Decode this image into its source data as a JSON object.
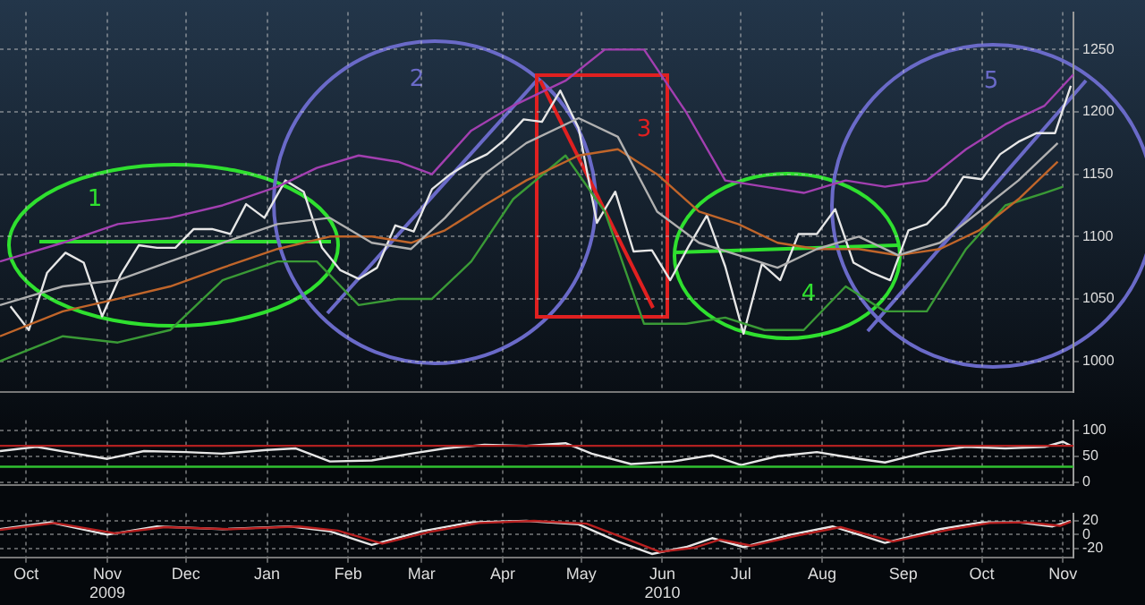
{
  "chart_data": [
    {
      "type": "line",
      "xlim": [
        "2009-09-21",
        "2010-11-05"
      ],
      "ylim": [
        975,
        1280
      ],
      "yticks": [
        1000,
        1050,
        1100,
        1150,
        1200,
        1250
      ],
      "xticks": [
        {
          "value": "2009-10-01",
          "label": null
        },
        {
          "value": "2009-11-01",
          "label": null
        },
        {
          "value": "2009-12-01",
          "label": null
        },
        {
          "value": "2010-01-01",
          "label": null
        },
        {
          "value": "2010-02-01",
          "label": null
        },
        {
          "value": "2010-03-01",
          "label": null
        },
        {
          "value": "2010-04-01",
          "label": null
        },
        {
          "value": "2010-05-01",
          "label": null
        },
        {
          "value": "2010-06-01",
          "label": null
        },
        {
          "value": "2010-07-01",
          "label": null
        },
        {
          "value": "2010-08-01",
          "label": null
        },
        {
          "value": "2010-09-01",
          "label": null
        },
        {
          "value": "2010-10-01",
          "label": null
        },
        {
          "value": "2010-11-01",
          "label": null
        }
      ],
      "grid": true,
      "tick_labels": "y",
      "annotations": [
        "1",
        "2",
        "3",
        "4",
        "5"
      ],
      "series": [
        {
          "color": "#a23fb0",
          "x": [
            "2009-09-21",
            "2009-10-15",
            "2009-11-05",
            "2009-11-25",
            "2009-12-15",
            "2010-01-05",
            "2010-01-20",
            "2010-02-05",
            "2010-02-20",
            "2010-03-05",
            "2010-03-20",
            "2010-04-05",
            "2010-04-25",
            "2010-05-10",
            "2010-05-25",
            "2010-06-10",
            "2010-06-25",
            "2010-07-10",
            "2010-07-25",
            "2010-08-10",
            "2010-08-25",
            "2010-09-10",
            "2010-09-25",
            "2010-10-10",
            "2010-10-25",
            "2010-11-05"
          ],
          "values": [
            1080,
            1095,
            1110,
            1115,
            1125,
            1140,
            1155,
            1165,
            1160,
            1150,
            1185,
            1205,
            1225,
            1250,
            1250,
            1200,
            1145,
            1140,
            1135,
            1145,
            1140,
            1145,
            1170,
            1190,
            1205,
            1230
          ]
        },
        {
          "color": "#b0b0b0",
          "x": [
            "2009-09-21",
            "2009-10-15",
            "2009-11-05",
            "2009-11-25",
            "2009-12-15",
            "2010-01-05",
            "2010-01-25",
            "2010-02-10",
            "2010-02-25",
            "2010-03-10",
            "2010-03-25",
            "2010-04-10",
            "2010-04-30",
            "2010-05-15",
            "2010-05-30",
            "2010-06-15",
            "2010-06-30",
            "2010-07-15",
            "2010-07-30",
            "2010-08-15",
            "2010-08-30",
            "2010-09-15",
            "2010-09-30",
            "2010-10-15",
            "2010-10-30"
          ],
          "values": [
            1045,
            1060,
            1065,
            1080,
            1095,
            1110,
            1115,
            1095,
            1090,
            1115,
            1150,
            1175,
            1195,
            1180,
            1120,
            1095,
            1085,
            1075,
            1090,
            1100,
            1085,
            1095,
            1120,
            1145,
            1175
          ]
        },
        {
          "color": "#c0652a",
          "x": [
            "2009-09-21",
            "2009-10-15",
            "2009-11-05",
            "2009-11-25",
            "2009-12-15",
            "2010-01-05",
            "2010-01-25",
            "2010-02-10",
            "2010-02-25",
            "2010-03-10",
            "2010-03-25",
            "2010-04-10",
            "2010-04-30",
            "2010-05-15",
            "2010-05-30",
            "2010-06-15",
            "2010-06-30",
            "2010-07-15",
            "2010-07-30",
            "2010-08-15",
            "2010-08-30",
            "2010-09-15",
            "2010-09-30",
            "2010-10-15",
            "2010-10-30"
          ],
          "values": [
            1020,
            1040,
            1050,
            1060,
            1075,
            1090,
            1100,
            1100,
            1095,
            1105,
            1125,
            1145,
            1165,
            1170,
            1150,
            1120,
            1110,
            1095,
            1090,
            1090,
            1085,
            1090,
            1105,
            1130,
            1160
          ]
        },
        {
          "color": "#3a9a36",
          "x": [
            "2009-09-21",
            "2009-10-15",
            "2009-11-05",
            "2009-11-25",
            "2009-12-15",
            "2010-01-05",
            "2010-01-20",
            "2010-02-05",
            "2010-02-20",
            "2010-03-05",
            "2010-03-20",
            "2010-04-05",
            "2010-04-25",
            "2010-05-10",
            "2010-05-25",
            "2010-06-10",
            "2010-06-25",
            "2010-07-10",
            "2010-07-25",
            "2010-08-10",
            "2010-08-25",
            "2010-09-10",
            "2010-09-25",
            "2010-10-10",
            "2010-10-25",
            "2010-11-01"
          ],
          "values": [
            1000,
            1020,
            1015,
            1025,
            1065,
            1080,
            1080,
            1045,
            1050,
            1050,
            1080,
            1130,
            1165,
            1120,
            1030,
            1030,
            1035,
            1025,
            1025,
            1060,
            1040,
            1040,
            1090,
            1125,
            1135,
            1140
          ]
        },
        {
          "color": "#e6e6e6",
          "x": [
            "2009-09-25",
            "2009-10-02",
            "2009-10-09",
            "2009-10-16",
            "2009-10-23",
            "2009-10-30",
            "2009-11-06",
            "2009-11-13",
            "2009-11-20",
            "2009-11-27",
            "2009-12-04",
            "2009-12-11",
            "2009-12-18",
            "2009-12-24",
            "2009-12-31",
            "2010-01-08",
            "2010-01-15",
            "2010-01-22",
            "2010-01-29",
            "2010-02-05",
            "2010-02-12",
            "2010-02-19",
            "2010-02-26",
            "2010-03-05",
            "2010-03-12",
            "2010-03-19",
            "2010-03-26",
            "2010-04-02",
            "2010-04-09",
            "2010-04-16",
            "2010-04-23",
            "2010-04-30",
            "2010-05-07",
            "2010-05-14",
            "2010-05-21",
            "2010-05-28",
            "2010-06-04",
            "2010-06-11",
            "2010-06-18",
            "2010-06-25",
            "2010-07-02",
            "2010-07-09",
            "2010-07-16",
            "2010-07-23",
            "2010-07-30",
            "2010-08-06",
            "2010-08-13",
            "2010-08-20",
            "2010-08-27",
            "2010-09-03",
            "2010-09-10",
            "2010-09-17",
            "2010-09-24",
            "2010-10-01",
            "2010-10-08",
            "2010-10-15",
            "2010-10-22",
            "2010-10-29",
            "2010-11-04"
          ],
          "values": [
            1044,
            1025,
            1071,
            1087,
            1079,
            1036,
            1069,
            1093,
            1091,
            1091,
            1106,
            1106,
            1102,
            1126,
            1115,
            1145,
            1136,
            1091,
            1073,
            1066,
            1075,
            1109,
            1104,
            1138,
            1150,
            1159,
            1166,
            1178,
            1194,
            1192,
            1217,
            1187,
            1111,
            1136,
            1088,
            1089,
            1065,
            1092,
            1117,
            1076,
            1022,
            1078,
            1065,
            1102,
            1102,
            1122,
            1079,
            1071,
            1065,
            1105,
            1110,
            1125,
            1148,
            1146,
            1166,
            1176,
            1183,
            1183,
            1221
          ]
        }
      ]
    },
    {
      "type": "line",
      "xlim": [
        "2009-09-21",
        "2010-11-05"
      ],
      "ylim": [
        -6,
        119
      ],
      "yticks": [
        0,
        50,
        100
      ],
      "xticks": [
        {
          "value": "2009-10-01",
          "label": null
        },
        {
          "value": "2009-11-01",
          "label": null
        },
        {
          "value": "2009-12-01",
          "label": null
        },
        {
          "value": "2010-01-01",
          "label": null
        },
        {
          "value": "2010-02-01",
          "label": null
        },
        {
          "value": "2010-03-01",
          "label": null
        },
        {
          "value": "2010-04-01",
          "label": null
        },
        {
          "value": "2010-05-01",
          "label": null
        },
        {
          "value": "2010-06-01",
          "label": null
        },
        {
          "value": "2010-07-01",
          "label": null
        },
        {
          "value": "2010-08-01",
          "label": null
        },
        {
          "value": "2010-09-01",
          "label": null
        },
        {
          "value": "2010-10-01",
          "label": null
        },
        {
          "value": "2010-11-01",
          "label": null
        }
      ],
      "grid": true,
      "tick_labels": "y",
      "ref_lines": [
        {
          "axis": "y",
          "value": 70,
          "color": "#b02020"
        },
        {
          "axis": "y",
          "value": 30,
          "color": "#30c030"
        }
      ],
      "series": [
        {
          "color": "#e6e6e6",
          "x": [
            "2009-09-21",
            "2009-10-05",
            "2009-10-20",
            "2009-11-01",
            "2009-11-15",
            "2009-12-01",
            "2009-12-15",
            "2010-01-01",
            "2010-01-12",
            "2010-01-25",
            "2010-02-10",
            "2010-02-25",
            "2010-03-10",
            "2010-03-25",
            "2010-04-10",
            "2010-04-25",
            "2010-05-05",
            "2010-05-20",
            "2010-06-05",
            "2010-06-20",
            "2010-07-01",
            "2010-07-15",
            "2010-07-30",
            "2010-08-15",
            "2010-08-25",
            "2010-09-10",
            "2010-09-25",
            "2010-10-10",
            "2010-10-25",
            "2010-11-01",
            "2010-11-04"
          ],
          "values": [
            60,
            68,
            55,
            45,
            60,
            58,
            55,
            62,
            65,
            40,
            42,
            55,
            65,
            72,
            70,
            75,
            55,
            35,
            40,
            52,
            33,
            50,
            58,
            45,
            38,
            58,
            68,
            65,
            68,
            78,
            70
          ]
        }
      ]
    },
    {
      "type": "line",
      "xlim": [
        "2009-09-21",
        "2010-11-05"
      ],
      "ylim": [
        -33,
        31
      ],
      "yticks": [
        -20,
        0,
        20
      ],
      "xticks": [
        {
          "value": "2009-10-01",
          "label": "Oct"
        },
        {
          "value": "2009-11-01",
          "label": "Nov\n2009"
        },
        {
          "value": "2009-12-01",
          "label": "Dec"
        },
        {
          "value": "2010-01-01",
          "label": "Jan"
        },
        {
          "value": "2010-02-01",
          "label": "Feb"
        },
        {
          "value": "2010-03-01",
          "label": "Mar"
        },
        {
          "value": "2010-04-01",
          "label": "Apr"
        },
        {
          "value": "2010-05-01",
          "label": "May"
        },
        {
          "value": "2010-06-01",
          "label": "Jun\n2010"
        },
        {
          "value": "2010-07-01",
          "label": "Jul"
        },
        {
          "value": "2010-08-01",
          "label": "Aug"
        },
        {
          "value": "2010-09-01",
          "label": "Sep"
        },
        {
          "value": "2010-10-01",
          "label": "Oct"
        },
        {
          "value": "2010-11-01",
          "label": "Nov"
        }
      ],
      "grid": true,
      "series": [
        {
          "color": "#b82020",
          "x": [
            "2009-09-21",
            "2009-10-12",
            "2009-11-04",
            "2009-11-23",
            "2009-12-18",
            "2010-01-13",
            "2010-01-28",
            "2010-02-14",
            "2010-03-04",
            "2010-03-23",
            "2010-04-13",
            "2010-05-03",
            "2010-05-19",
            "2010-05-31",
            "2010-06-13",
            "2010-06-23",
            "2010-07-05",
            "2010-07-23",
            "2010-08-08",
            "2010-08-28",
            "2010-09-18",
            "2010-10-04",
            "2010-10-18",
            "2010-10-31",
            "2010-11-04"
          ],
          "values": [
            7,
            17,
            2,
            11,
            8,
            12,
            6,
            -13,
            4,
            17,
            20,
            16,
            -7,
            -25,
            -19,
            -7,
            -16,
            -1,
            11,
            -10,
            7,
            17,
            18,
            13,
            19
          ]
        },
        {
          "color": "#e6e6e6",
          "x": [
            "2009-09-21",
            "2009-10-10",
            "2009-11-01",
            "2009-11-20",
            "2009-12-15",
            "2010-01-10",
            "2010-01-25",
            "2010-02-10",
            "2010-03-01",
            "2010-03-20",
            "2010-04-10",
            "2010-04-30",
            "2010-05-15",
            "2010-05-28",
            "2010-06-10",
            "2010-06-20",
            "2010-07-02",
            "2010-07-20",
            "2010-08-05",
            "2010-08-25",
            "2010-09-15",
            "2010-10-01",
            "2010-10-15",
            "2010-10-28",
            "2010-11-04"
          ],
          "values": [
            8,
            18,
            0,
            12,
            8,
            12,
            5,
            -15,
            5,
            18,
            20,
            15,
            -10,
            -28,
            -18,
            -5,
            -18,
            0,
            12,
            -12,
            8,
            18,
            18,
            12,
            20
          ]
        }
      ]
    }
  ]
}
